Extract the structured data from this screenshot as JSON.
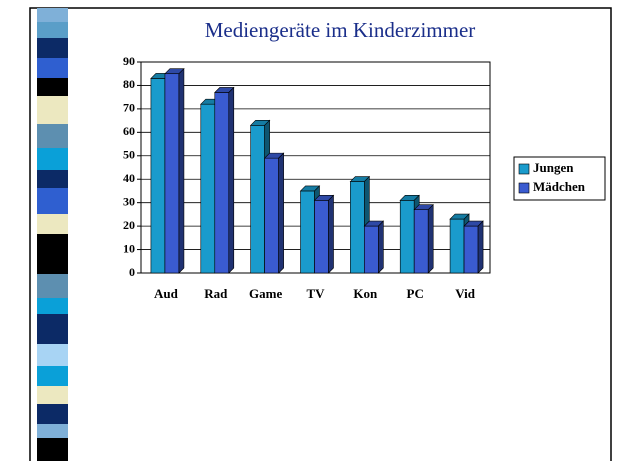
{
  "chart_data": {
    "type": "bar",
    "title": "Mediengeräte im Kinderzimmer",
    "categories": [
      "Aud",
      "Rad",
      "Game",
      "TV",
      "Kon",
      "PC",
      "Vid"
    ],
    "series": [
      {
        "name": "Jungen",
        "color": "#1a9bcc",
        "values": [
          83,
          72,
          63,
          35,
          39,
          31,
          23
        ]
      },
      {
        "name": "Mädchen",
        "color": "#3a5bd0",
        "values": [
          85,
          77,
          49,
          31,
          20,
          27,
          20
        ]
      }
    ],
    "ylim": [
      0,
      90
    ],
    "yticks": [
      0,
      10,
      20,
      30,
      40,
      50,
      60,
      70,
      80,
      90
    ],
    "grid": true,
    "legend": "right"
  }
}
